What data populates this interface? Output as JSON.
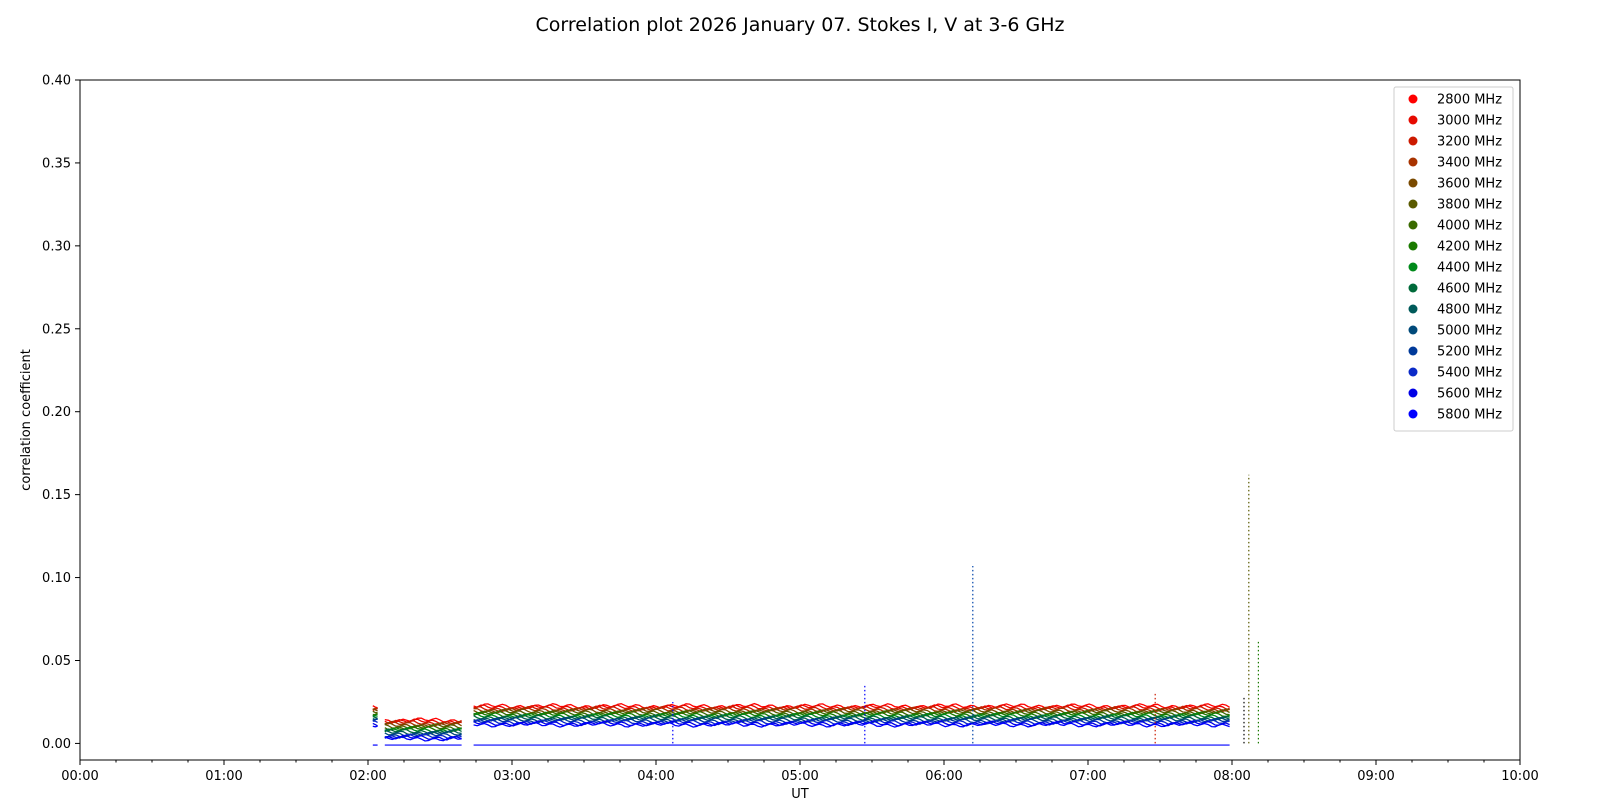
{
  "chart_data": {
    "type": "scatter",
    "title": "Correlation plot 2026 January 07. Stokes I, V at 3-6 GHz",
    "xlabel": "UT",
    "ylabel": "correlation coefficient",
    "xlim": [
      "00:00",
      "10:00"
    ],
    "ylim": [
      -0.01,
      0.4
    ],
    "x_ticks": [
      "00:00",
      "01:00",
      "02:00",
      "03:00",
      "04:00",
      "05:00",
      "06:00",
      "07:00",
      "08:00",
      "09:00",
      "10:00"
    ],
    "y_ticks": [
      "0.00",
      "0.05",
      "0.10",
      "0.15",
      "0.20",
      "0.25",
      "0.30",
      "0.35",
      "0.40"
    ],
    "grid": false,
    "legend_position": "top-right",
    "series": [
      {
        "name": "2800 MHz",
        "color": "#ff0000",
        "level": 0.0225
      },
      {
        "name": "3000 MHz",
        "color": "#e60a00",
        "level": 0.0218
      },
      {
        "name": "3200 MHz",
        "color": "#cc1a00",
        "level": 0.021
      },
      {
        "name": "3400 MHz",
        "color": "#a83300",
        "level": 0.0203
      },
      {
        "name": "3600 MHz",
        "color": "#7a4a00",
        "level": 0.0195
      },
      {
        "name": "3800 MHz",
        "color": "#5a5a00",
        "level": 0.0188
      },
      {
        "name": "4000 MHz",
        "color": "#3a6a00",
        "level": 0.018
      },
      {
        "name": "4200 MHz",
        "color": "#1a7a00",
        "level": 0.0173
      },
      {
        "name": "4400 MHz",
        "color": "#008a1a",
        "level": 0.0165
      },
      {
        "name": "4600 MHz",
        "color": "#006a3a",
        "level": 0.0158
      },
      {
        "name": "4800 MHz",
        "color": "#005a5a",
        "level": 0.015
      },
      {
        "name": "5000 MHz",
        "color": "#004a7a",
        "level": 0.0143
      },
      {
        "name": "5200 MHz",
        "color": "#003a9a",
        "level": 0.0135
      },
      {
        "name": "5400 MHz",
        "color": "#0a2ac8",
        "level": 0.0128
      },
      {
        "name": "5600 MHz",
        "color": "#0000e6",
        "level": 0.012
      },
      {
        "name": "5800 MHz",
        "color": "#0000ff",
        "level": 0.0113
      }
    ],
    "segments": [
      {
        "start": "02:02",
        "end": "02:04",
        "slope": 0.0
      },
      {
        "start": "02:07",
        "end": "02:39",
        "slope": -0.0085
      },
      {
        "start": "02:44",
        "end": "07:59",
        "slope": 0.0
      }
    ],
    "baseline_v": -0.001,
    "spikes": [
      {
        "time": "04:07",
        "peak": 0.025,
        "color": "#0000ff"
      },
      {
        "time": "05:27",
        "peak": 0.036,
        "color": "#0000ff"
      },
      {
        "time": "06:12",
        "peak": 0.107,
        "color": "#0044aa"
      },
      {
        "time": "07:28",
        "peak": 0.031,
        "color": "#cc1a00"
      },
      {
        "time": "08:05",
        "peak": 0.028,
        "color": "#000000"
      },
      {
        "time": "08:07",
        "peak": 0.162,
        "color": "#5a5a00"
      },
      {
        "time": "08:11",
        "peak": 0.062,
        "color": "#1a7a00"
      }
    ]
  }
}
